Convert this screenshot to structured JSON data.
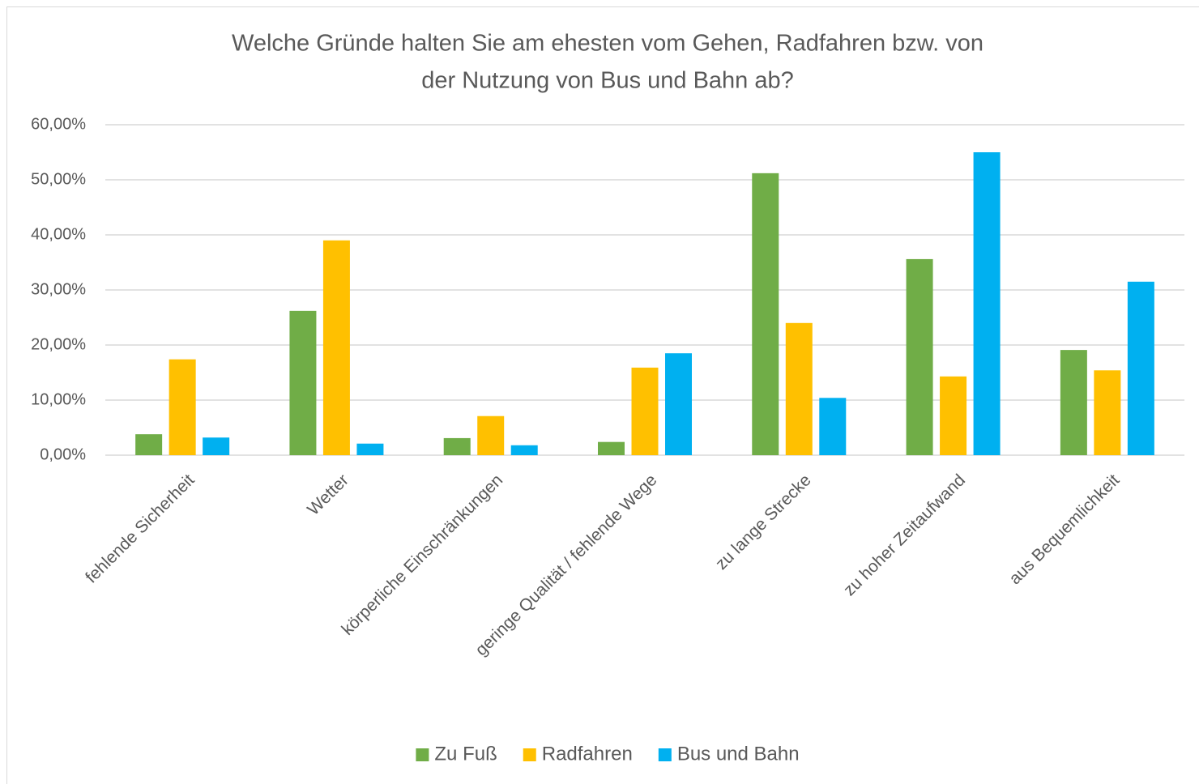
{
  "chart_data": {
    "type": "bar",
    "title": [
      "Welche Gründe halten Sie am ehesten vom Gehen, Radfahren bzw. von",
      "der Nutzung von Bus und Bahn ab?"
    ],
    "categories": [
      "fehlende Sicherheit",
      "Wetter",
      "körperliche Einschränkungen",
      "geringe Qualität / fehlende Wege",
      "zu lange Strecke",
      "zu hoher Zeitaufwand",
      "aus Bequemlichkeit"
    ],
    "series": [
      {
        "name": "Zu Fuß",
        "color": "#70ad47",
        "values": [
          3.8,
          26.2,
          3.1,
          2.4,
          51.2,
          35.6,
          19.1
        ]
      },
      {
        "name": "Radfahren",
        "color": "#ffc000",
        "values": [
          17.4,
          39.0,
          7.1,
          15.9,
          24.0,
          14.3,
          15.4
        ]
      },
      {
        "name": "Bus und Bahn",
        "color": "#00b0f0",
        "values": [
          3.2,
          2.1,
          1.8,
          18.5,
          10.4,
          55.0,
          31.5
        ]
      }
    ],
    "ylim": [
      0,
      60
    ],
    "yticks": [
      {
        "value": 0,
        "label": "0,00%"
      },
      {
        "value": 10,
        "label": "10,00%"
      },
      {
        "value": 20,
        "label": "20,00%"
      },
      {
        "value": 30,
        "label": "30,00%"
      },
      {
        "value": 40,
        "label": "40,00%"
      },
      {
        "value": 50,
        "label": "50,00%"
      },
      {
        "value": 60,
        "label": "60,00%"
      }
    ],
    "grid": true,
    "legend": "bottom"
  }
}
